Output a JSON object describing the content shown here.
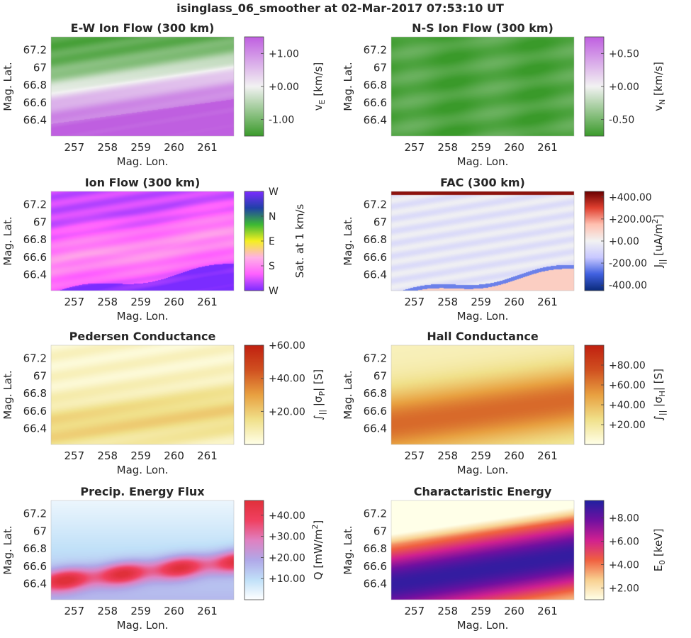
{
  "figure": {
    "title": "isinglass_06_smoother at 02-Mar-2017 07:53:10 UT"
  },
  "chart_data": [
    {
      "type": "heatmap",
      "title": "E-W Ion Flow (300 km)",
      "xlabel": "Mag. Lon.",
      "ylabel": "Mag. Lat.",
      "xlim": [
        256.3,
        261.8
      ],
      "ylim": [
        66.22,
        67.35
      ],
      "xticks": [
        "257",
        "258",
        "259",
        "260",
        "261"
      ],
      "yticks": [
        "67.2",
        "67",
        "66.8",
        "66.6",
        "66.4"
      ],
      "colorbar": {
        "label": "v_E [km/s]",
        "label_main": "v",
        "label_sub": "E",
        "label_rest": " [km/s]",
        "ticks": [
          "+1.00",
          "+0.00",
          "-1.00"
        ],
        "tick_values": [
          1.0,
          0.0,
          -1.0
        ],
        "range": [
          -1.5,
          1.5
        ],
        "colors": [
          "#3a9a2a",
          "#f2f2f2",
          "#bf5fe0"
        ]
      },
      "pattern": "ew"
    },
    {
      "type": "heatmap",
      "title": "N-S Ion Flow (300 km)",
      "xlabel": "Mag. Lon.",
      "ylabel": "Mag. Lat.",
      "xlim": [
        256.3,
        261.8
      ],
      "ylim": [
        66.22,
        67.35
      ],
      "xticks": [
        "257",
        "258",
        "259",
        "260",
        "261"
      ],
      "yticks": [
        "67.2",
        "67",
        "66.8",
        "66.6",
        "66.4"
      ],
      "colorbar": {
        "label": "v_N [km/s]",
        "label_main": "v",
        "label_sub": "N",
        "label_rest": " [km/s]",
        "ticks": [
          "+0.50",
          "+0.00",
          "-0.50"
        ],
        "tick_values": [
          0.5,
          0.0,
          -0.5
        ],
        "range": [
          -0.75,
          0.75
        ],
        "colors": [
          "#3a9a2a",
          "#f2f2f2",
          "#bf5fe0"
        ]
      },
      "pattern": "ns"
    },
    {
      "type": "heatmap",
      "title": "Ion Flow (300 km)",
      "xlabel": "Mag. Lon.",
      "ylabel": "Mag. Lat.",
      "xlim": [
        256.3,
        261.8
      ],
      "ylim": [
        66.22,
        67.35
      ],
      "xticks": [
        "257",
        "258",
        "259",
        "260",
        "261"
      ],
      "yticks": [
        "67.2",
        "67",
        "66.8",
        "66.6",
        "66.4"
      ],
      "colorbar": {
        "label": "Sat. at 1 km/s",
        "ticks": [
          "W",
          "N",
          "E",
          "S",
          "W"
        ],
        "tick_values": [
          1.0,
          0.75,
          0.5,
          0.25,
          0.0
        ],
        "range": [
          0,
          1
        ],
        "colors": [
          "#7b2cff",
          "#ff60ff",
          "#ffb0e6",
          "#f5f020",
          "#3cb834",
          "#2040a8",
          "#7b2cff"
        ]
      },
      "pattern": "flow"
    },
    {
      "type": "heatmap",
      "title": "FAC (300 km)",
      "xlabel": "Mag. Lon.",
      "ylabel": "Mag. Lat.",
      "xlim": [
        256.3,
        261.8
      ],
      "ylim": [
        66.22,
        67.35
      ],
      "xticks": [
        "257",
        "258",
        "259",
        "260",
        "261"
      ],
      "yticks": [
        "67.2",
        "67",
        "66.8",
        "66.6",
        "66.4"
      ],
      "colorbar": {
        "label": "J_|| [uA/m^2]",
        "label_main": "J",
        "label_sub": "||",
        "label_rest": " [uA/m",
        "label_sup": "2",
        "label_end": "]",
        "ticks": [
          "+400.00",
          "+200.00",
          "+0.00",
          "-200.00",
          "-400.00"
        ],
        "tick_values": [
          400,
          200,
          0,
          -200,
          -400
        ],
        "range": [
          -450,
          450
        ],
        "colors": [
          "#0a2a7a",
          "#4060e0",
          "#c8c8ff",
          "#f2f2f2",
          "#ffc0b0",
          "#e04030",
          "#6a0000"
        ]
      },
      "pattern": "fac"
    },
    {
      "type": "heatmap",
      "title": "Pedersen Conductance",
      "xlabel": "Mag. Lon.",
      "ylabel": "Mag. Lat.",
      "xlim": [
        256.3,
        261.8
      ],
      "ylim": [
        66.22,
        67.35
      ],
      "xticks": [
        "257",
        "258",
        "259",
        "260",
        "261"
      ],
      "yticks": [
        "67.2",
        "67",
        "66.8",
        "66.6",
        "66.4"
      ],
      "colorbar": {
        "label": "∫|| σP [S]",
        "label_main": "∫",
        "label_sub": "||",
        "label_rest": " |σ",
        "label_sub2": "P",
        "label_end": "| [S]",
        "ticks": [
          "+60.00",
          "+40.00",
          "+20.00"
        ],
        "tick_values": [
          60,
          40,
          20
        ],
        "range": [
          0,
          60
        ],
        "colors": [
          "#ffffe8",
          "#f0e08a",
          "#e8a040",
          "#d05020",
          "#c02010"
        ]
      },
      "pattern": "ped"
    },
    {
      "type": "heatmap",
      "title": "Hall Conductance",
      "xlabel": "Mag. Lon.",
      "ylabel": "Mag. Lat.",
      "xlim": [
        256.3,
        261.8
      ],
      "ylim": [
        66.22,
        67.35
      ],
      "xticks": [
        "257",
        "258",
        "259",
        "260",
        "261"
      ],
      "yticks": [
        "67.2",
        "67",
        "66.8",
        "66.6",
        "66.4"
      ],
      "colorbar": {
        "label": "∫|| σH [S]",
        "label_main": "∫",
        "label_sub": "||",
        "label_rest": " |σ",
        "label_sub2": "H",
        "label_end": "| [S]",
        "ticks": [
          "+80.00",
          "+60.00",
          "+40.00",
          "+20.00"
        ],
        "tick_values": [
          80,
          60,
          40,
          20
        ],
        "range": [
          0,
          100
        ],
        "colors": [
          "#ffffe8",
          "#f0e08a",
          "#e8a040",
          "#d05020",
          "#c02010"
        ]
      },
      "pattern": "hall"
    },
    {
      "type": "heatmap",
      "title": "Precip. Energy Flux",
      "xlabel": "Mag. Lon.",
      "ylabel": "Mag. Lat.",
      "xlim": [
        256.3,
        261.8
      ],
      "ylim": [
        66.22,
        67.35
      ],
      "xticks": [
        "257",
        "258",
        "259",
        "260",
        "261"
      ],
      "yticks": [
        "67.2",
        "67",
        "66.8",
        "66.6",
        "66.4"
      ],
      "colorbar": {
        "label": "Q [mW/m^2]",
        "label_main": "Q [mW/m",
        "label_sup": "2",
        "label_end": "]",
        "ticks": [
          "+40.00",
          "+30.00",
          "+20.00",
          "+10.00"
        ],
        "tick_values": [
          40,
          30,
          20,
          10
        ],
        "range": [
          0,
          47
        ],
        "colors": [
          "#ffffff",
          "#c0e0f8",
          "#b0a8e8",
          "#e080c0",
          "#f04060",
          "#e0303a"
        ]
      },
      "pattern": "q"
    },
    {
      "type": "heatmap",
      "title": "Charactaristic Energy",
      "xlabel": "Mag. Lon.",
      "ylabel": "Mag. Lat.",
      "xlim": [
        256.3,
        261.8
      ],
      "ylim": [
        66.22,
        67.35
      ],
      "xticks": [
        "257",
        "258",
        "259",
        "260",
        "261"
      ],
      "yticks": [
        "67.2",
        "67",
        "66.8",
        "66.6",
        "66.4"
      ],
      "colorbar": {
        "label": "E_0 [keV]",
        "label_main": "E",
        "label_sub": "0",
        "label_rest": " [keV]",
        "ticks": [
          "+8.00",
          "+6.00",
          "+4.00",
          "+2.00"
        ],
        "tick_values": [
          8,
          6,
          4,
          2
        ],
        "range": [
          1,
          9.5
        ],
        "colors": [
          "#ffffe8",
          "#f8d090",
          "#f06040",
          "#d02090",
          "#7010a0",
          "#2020a0"
        ]
      },
      "pattern": "e0"
    }
  ]
}
